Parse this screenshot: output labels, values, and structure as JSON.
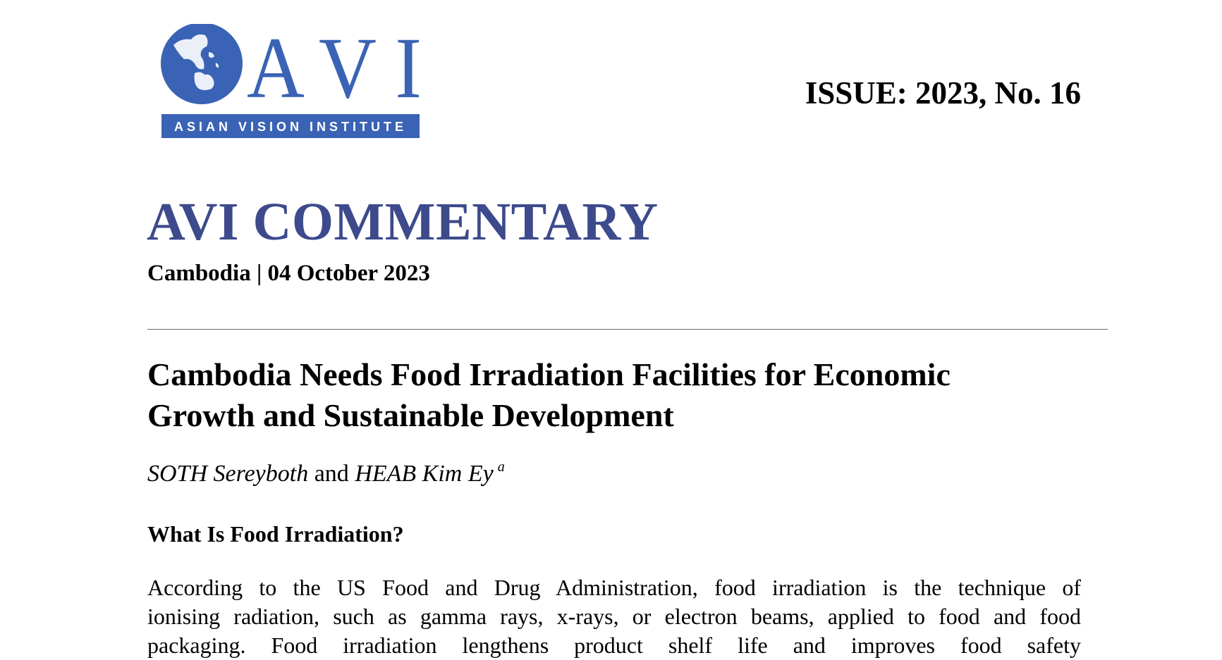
{
  "logo": {
    "letters": "AVI",
    "banner": "ASIAN VISION INSTITUTE",
    "color": "#3a63b5"
  },
  "issue": "ISSUE: 2023, No. 16",
  "series_title": "AVI COMMENTARY",
  "dateline": "Cambodia | 04 October 2023",
  "article": {
    "title_lines": [
      "Cambodia Needs Food Irradiation Facilities for Economic",
      "Growth and Sustainable Development"
    ],
    "authors": {
      "first": "SOTH Sereyboth",
      "conjunction": "and",
      "second": "HEAB Kim Ey",
      "affiliation_mark": "a"
    },
    "section_heading": "What Is Food Irradiation?",
    "body_lines": [
      "According to the US Food and Drug Administration, food irradiation is the technique of",
      "ionising radiation, such as gamma rays, x-rays, or electron beams, applied to food and food",
      "packaging. Food irradiation lengthens product shelf life and improves food safety"
    ]
  }
}
